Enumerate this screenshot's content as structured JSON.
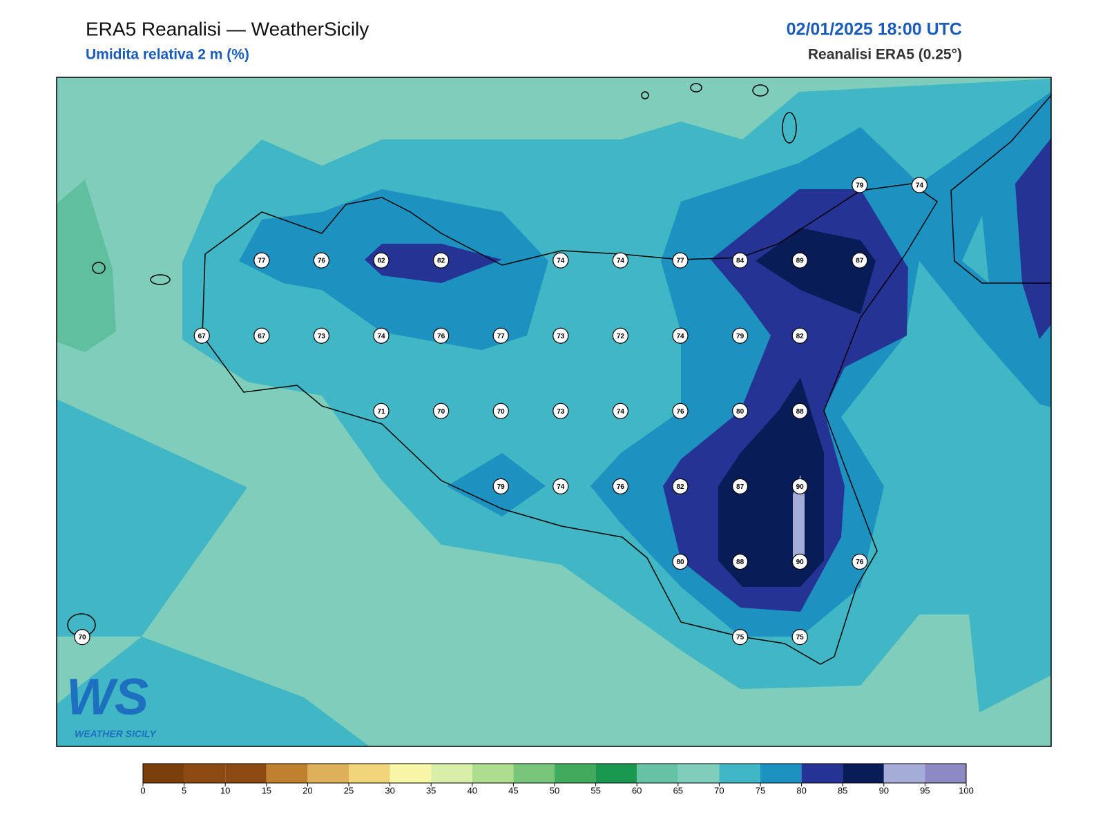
{
  "header": {
    "title": "ERA5 Reanalisi — WeatherSicily",
    "subtitle": "Umidita relativa 2 m (%)",
    "datetime": "02/01/2025 18:00 UTC",
    "source": "Reanalisi ERA5 (0.25°)"
  },
  "logo": {
    "letters": "WS",
    "text": "WEATHER SICILY"
  },
  "stations": {
    "rows": [
      [
        null,
        null,
        null,
        null,
        null,
        null,
        null,
        null,
        null,
        null,
        null,
        null,
        null,
        79,
        74
      ],
      [
        null,
        null,
        null,
        77,
        76,
        82,
        82,
        null,
        74,
        74,
        77,
        84,
        89,
        87,
        null
      ],
      [
        null,
        null,
        67,
        67,
        73,
        74,
        76,
        77,
        73,
        72,
        74,
        79,
        82,
        null,
        null
      ],
      [
        null,
        null,
        null,
        null,
        null,
        71,
        70,
        70,
        73,
        74,
        76,
        80,
        88,
        null,
        null
      ],
      [
        null,
        null,
        null,
        null,
        null,
        null,
        null,
        79,
        74,
        76,
        82,
        87,
        90,
        null,
        null
      ],
      [
        null,
        null,
        null,
        null,
        null,
        null,
        null,
        null,
        null,
        null,
        80,
        88,
        90,
        76,
        null
      ],
      [
        70,
        null,
        null,
        null,
        null,
        null,
        null,
        null,
        null,
        null,
        null,
        75,
        75,
        null,
        null
      ]
    ]
  },
  "colorbar": {
    "ticks": [
      0,
      5,
      10,
      15,
      20,
      25,
      30,
      35,
      40,
      45,
      50,
      55,
      60,
      65,
      70,
      75,
      80,
      85,
      90,
      95,
      100
    ],
    "colors": [
      "#7a3f0a",
      "#8b4a12",
      "#8b4a12",
      "#bf812d",
      "#dfb05a",
      "#f0d57a",
      "#f6f6a6",
      "#d9efa9",
      "#addd8e",
      "#78c679",
      "#41ab5d",
      "#1a9850",
      "#66c2a4",
      "#7fcdbb",
      "#41b6c4",
      "#1d91c0",
      "#253494",
      "#081d58",
      "#a6acd8",
      "#8c89c5"
    ]
  }
}
